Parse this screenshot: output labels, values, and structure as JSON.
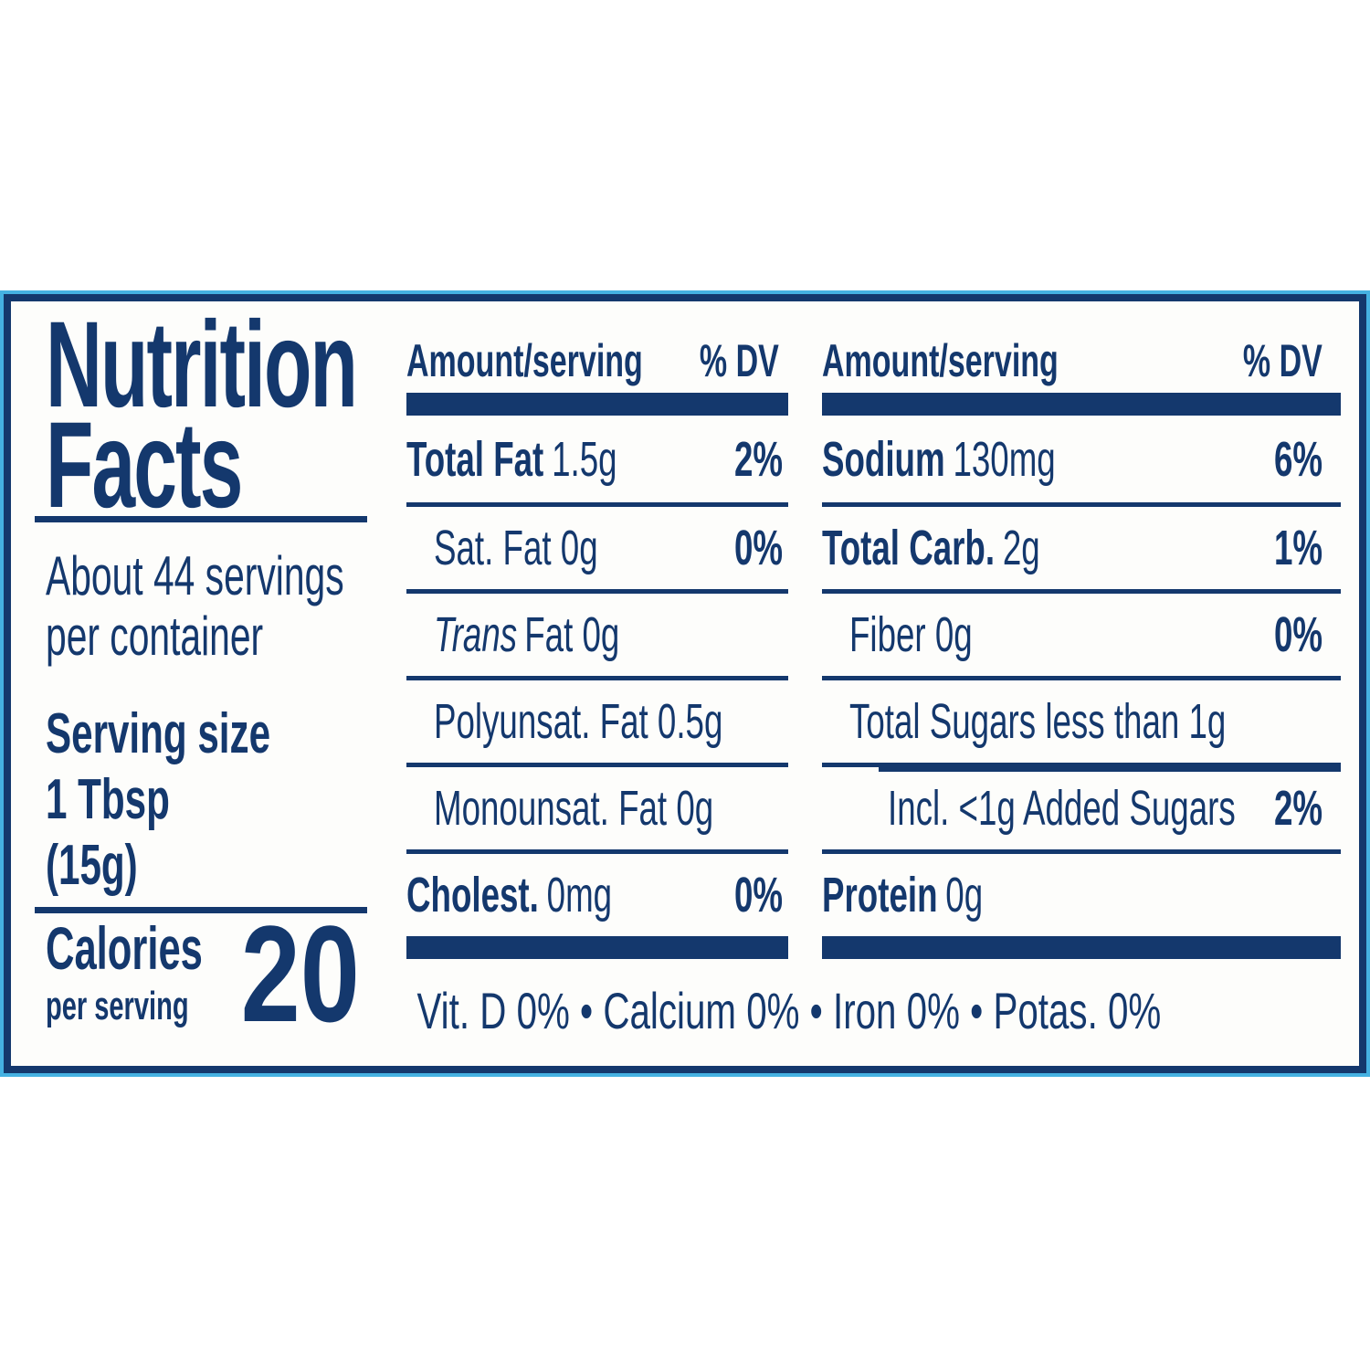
{
  "label": {
    "title_line1": "Nutrition",
    "title_line2": "Facts",
    "servings_line1": "About 44 servings",
    "servings_line2": "per container",
    "serving_size_heading": "Serving size",
    "serving_size_line1": "1 Tbsp",
    "serving_size_line2": "(15g)",
    "calories_heading": "Calories",
    "calories_sub": "per serving",
    "calories_value": "20"
  },
  "columns": [
    {
      "header_amount": "Amount/serving",
      "header_dv": "% DV",
      "rows": [
        {
          "bold": "Total Fat",
          "rest": "1.5g",
          "dv": "2%"
        },
        {
          "rest": "Sat. Fat 0g",
          "dv": "0%"
        },
        {
          "italic": "Trans",
          "rest": "Fat 0g",
          "dv": ""
        },
        {
          "rest": "Polyunsat. Fat 0.5g",
          "dv": ""
        },
        {
          "rest": "Monounsat. Fat 0g",
          "dv": ""
        },
        {
          "bold": "Cholest.",
          "rest": "0mg",
          "dv": "0%"
        }
      ]
    },
    {
      "header_amount": "Amount/serving",
      "header_dv": "% DV",
      "rows": [
        {
          "bold": "Sodium",
          "rest": "130mg",
          "dv": "6%"
        },
        {
          "bold": "Total Carb.",
          "rest": "2g",
          "dv": "1%"
        },
        {
          "rest": "Fiber 0g",
          "dv": "0%"
        },
        {
          "rest": "Total Sugars less than 1g",
          "dv": ""
        },
        {
          "rest": "Incl. <1g Added Sugars",
          "dv": "2%"
        },
        {
          "bold": "Protein",
          "rest": "0g",
          "dv": ""
        }
      ]
    }
  ],
  "footer": {
    "vitamins_line": "Vit. D 0% • Calcium 0% • Iron 0% • Potas. 0%"
  },
  "colors": {
    "navy": "#14386d",
    "accent": "#45b1e2",
    "label_bg": "#fdfdfb",
    "page_bg": "#ffffff"
  }
}
